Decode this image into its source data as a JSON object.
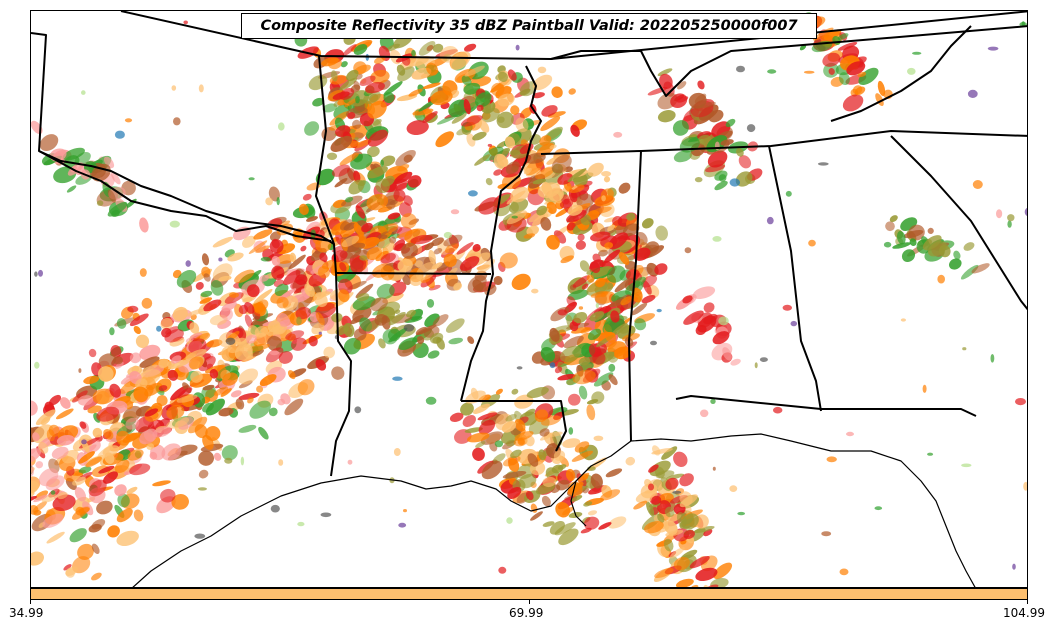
{
  "title": "Composite Reflectivity 35 dBZ Paintball Valid: 202205250000f007",
  "colorbar": {
    "color": "#fdbf6f",
    "tick_labels": [
      "34.99",
      "69.99",
      "104.99"
    ]
  },
  "colors": {
    "background": "#ffffff",
    "boundaries": "#000000",
    "member_palette": [
      "#e31a1c",
      "#ff7f00",
      "#fb9a99",
      "#fdbf6f",
      "#33a02c",
      "#b2df8a",
      "#b15928",
      "#6a3d9a",
      "#1f78b4",
      "#999933",
      "#555555",
      "#2ca02c"
    ]
  }
}
